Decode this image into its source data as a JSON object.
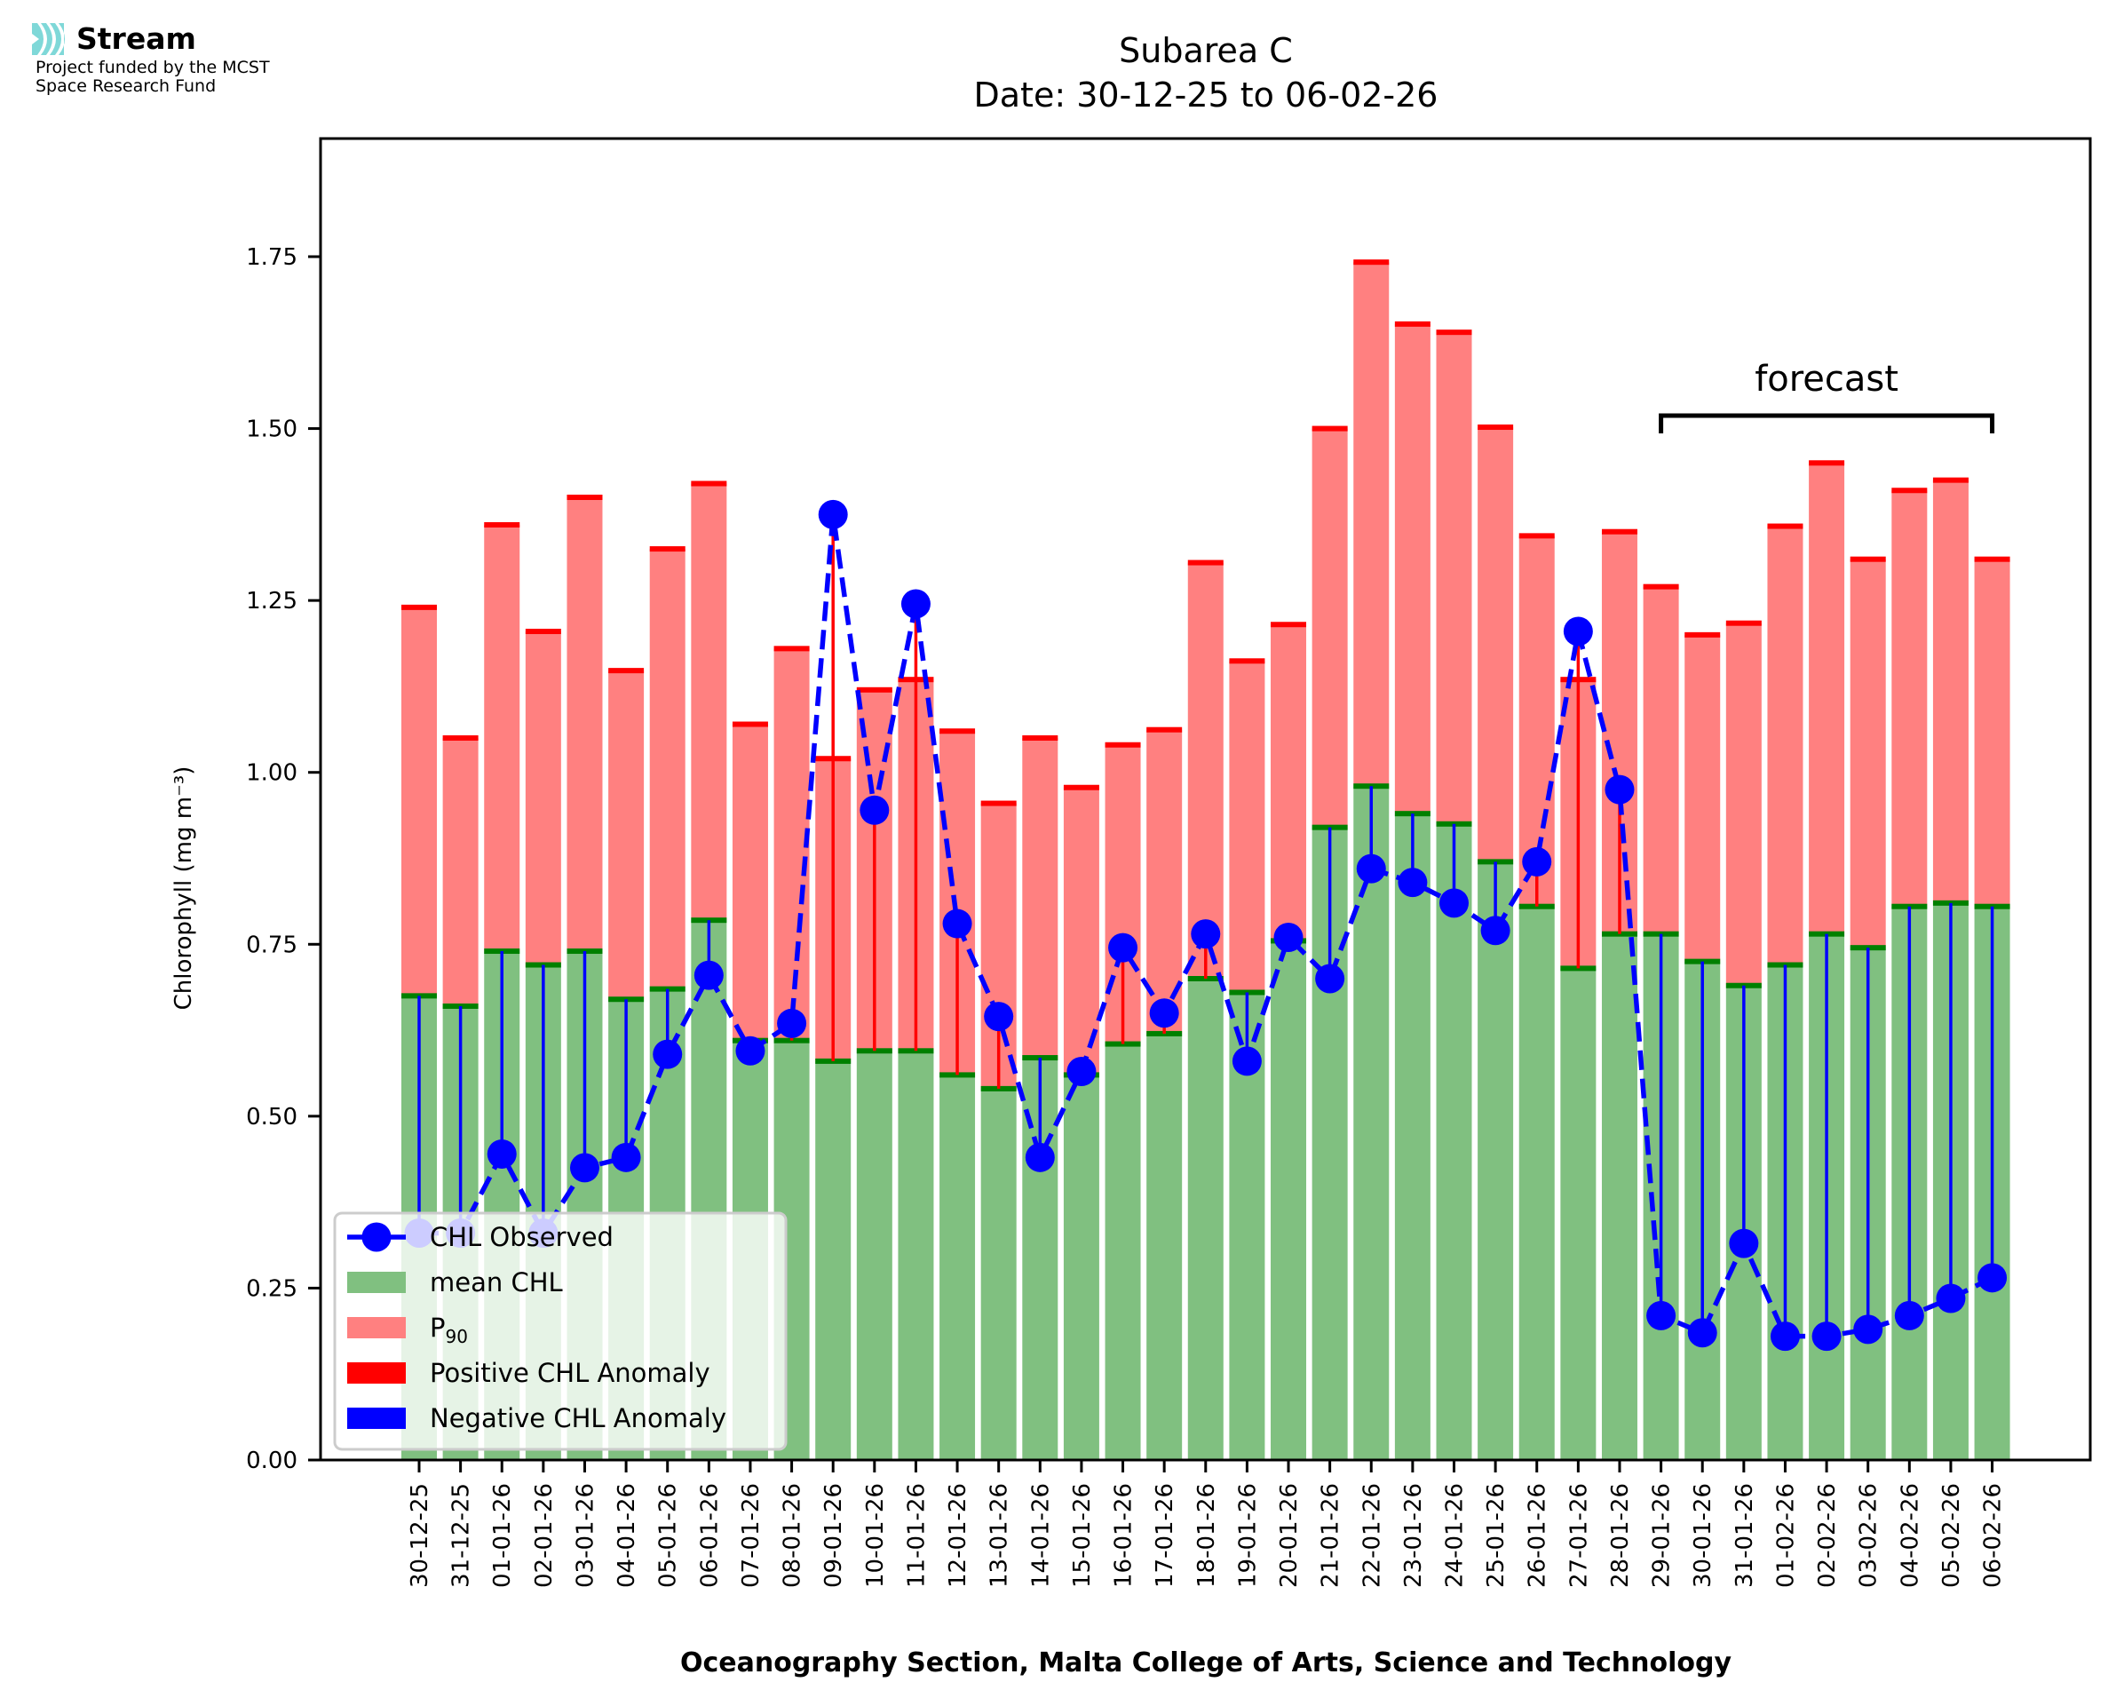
{
  "logo": {
    "name": "Stream",
    "subtitle_line1": "Project funded by the MCST",
    "subtitle_line2": "Space Research Fund",
    "accent_color": "#7fd8d8"
  },
  "chart_data": {
    "type": "bar",
    "title": "Subarea C",
    "subtitle": "Date: 30-12-25 to 06-02-26",
    "xlabel": "Oceanography Section, Malta College of Arts, Science and Technology",
    "ylabel": "Chlorophyll (mg m⁻³)",
    "ylim": [
      0,
      1.92
    ],
    "yticks": [
      "0.00",
      "0.25",
      "0.50",
      "0.75",
      "1.00",
      "1.25",
      "1.50",
      "1.75"
    ],
    "ytick_values": [
      0,
      0.25,
      0.5,
      0.75,
      1.0,
      1.25,
      1.5,
      1.75
    ],
    "grid": false,
    "categories": [
      "30-12-25",
      "31-12-25",
      "01-01-26",
      "02-01-26",
      "03-01-26",
      "04-01-26",
      "05-01-26",
      "06-01-26",
      "07-01-26",
      "08-01-26",
      "09-01-26",
      "10-01-26",
      "11-01-26",
      "12-01-26",
      "13-01-26",
      "14-01-26",
      "15-01-26",
      "16-01-26",
      "17-01-26",
      "18-01-26",
      "19-01-26",
      "20-01-26",
      "21-01-26",
      "22-01-26",
      "23-01-26",
      "24-01-26",
      "25-01-26",
      "26-01-26",
      "27-01-26",
      "28-01-26",
      "29-01-26",
      "30-01-26",
      "31-01-26",
      "01-02-26",
      "02-02-26",
      "03-02-26",
      "04-02-26",
      "05-02-26",
      "06-02-26"
    ],
    "series": [
      {
        "name": "mean CHL",
        "kind": "bar",
        "color": "#80c080",
        "edge_color": "#008000",
        "values": [
          0.675,
          0.66,
          0.74,
          0.72,
          0.74,
          0.67,
          0.685,
          0.785,
          0.61,
          0.61,
          0.58,
          0.595,
          0.595,
          0.56,
          0.54,
          0.585,
          0.56,
          0.605,
          0.62,
          0.7,
          0.68,
          0.755,
          0.92,
          0.98,
          0.94,
          0.925,
          0.87,
          0.805,
          0.715,
          0.765,
          0.765,
          0.725,
          0.69,
          0.72,
          0.765,
          0.745,
          0.805,
          0.81,
          0.805
        ]
      },
      {
        "name": "P90",
        "label_main": "P",
        "label_sub": "90",
        "kind": "stacked-bar-top",
        "color": "#ff8080",
        "edge_color": "#ff0000",
        "values": [
          1.24,
          1.05,
          1.36,
          1.205,
          1.4,
          1.148,
          1.325,
          1.42,
          1.07,
          1.18,
          1.02,
          1.12,
          1.135,
          1.06,
          0.955,
          1.05,
          0.978,
          1.04,
          1.062,
          1.305,
          1.162,
          1.215,
          1.5,
          1.742,
          1.652,
          1.64,
          1.502,
          1.344,
          1.135,
          1.35,
          1.27,
          1.2,
          1.217,
          1.358,
          1.45,
          1.31,
          1.41,
          1.425,
          1.31
        ]
      },
      {
        "name": "CHL Observed",
        "kind": "line",
        "color": "#0000ff",
        "style": "dashed",
        "marker": "circle",
        "values": [
          0.33,
          0.33,
          0.445,
          0.33,
          0.425,
          0.44,
          0.59,
          0.705,
          0.595,
          0.635,
          1.375,
          0.945,
          1.245,
          0.78,
          0.645,
          0.44,
          0.565,
          0.745,
          0.65,
          0.765,
          0.58,
          0.76,
          0.7,
          0.86,
          0.84,
          0.81,
          0.77,
          0.87,
          1.205,
          0.975,
          0.21,
          0.185,
          0.315,
          0.18,
          0.18,
          0.19,
          0.21,
          0.235,
          0.265
        ]
      }
    ],
    "anomaly_colors": {
      "positive": "#ff0000",
      "negative": "#0000ff"
    },
    "legend": {
      "placement": "lower-left",
      "entries": [
        {
          "label": "CHL Observed",
          "kind": "line-marker",
          "color": "#0000ff"
        },
        {
          "label": "mean CHL",
          "kind": "patch",
          "color": "#80c080"
        },
        {
          "label": "P",
          "sub": "90",
          "kind": "patch",
          "color": "#ff8080"
        },
        {
          "label": "Positive CHL Anomaly",
          "kind": "patch",
          "color": "#ff0000"
        },
        {
          "label": "Negative CHL Anomaly",
          "kind": "patch",
          "color": "#0000ff"
        }
      ]
    },
    "annotation": {
      "text": "forecast",
      "start_category": "29-01-26",
      "end_category": "06-02-26"
    }
  }
}
